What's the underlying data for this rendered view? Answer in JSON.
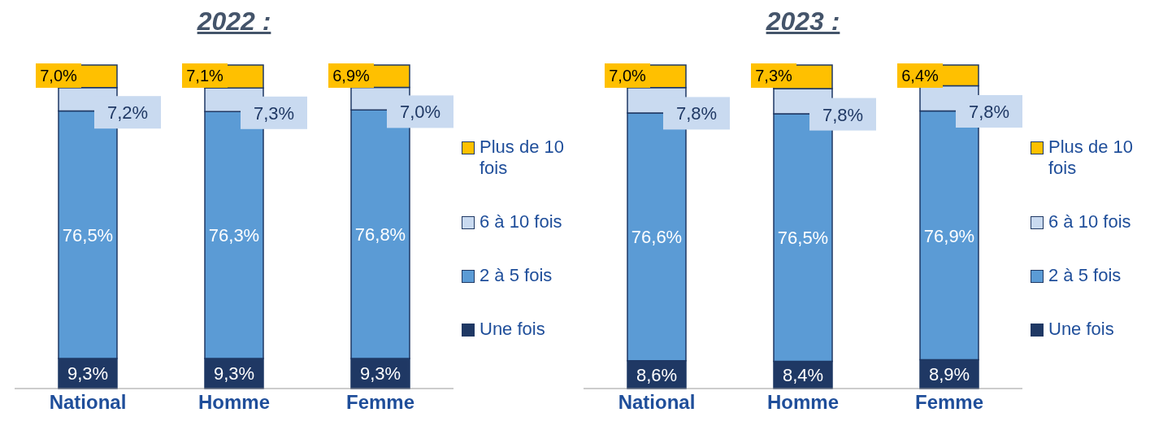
{
  "chart_data": [
    {
      "type": "bar",
      "title": "2022 :",
      "categories": [
        "National",
        "Homme",
        "Femme"
      ],
      "stacked": true,
      "legend": "right",
      "series": [
        {
          "name": "Une fois",
          "color": "#1f3864",
          "values": [
            9.3,
            9.3,
            9.3
          ],
          "value_labels": [
            "9,3%",
            "9,3%",
            "9,3%"
          ]
        },
        {
          "name": "2 à 5 fois",
          "color": "#5b9bd5",
          "values": [
            76.5,
            76.3,
            76.8
          ],
          "value_labels": [
            "76,5%",
            "76,3%",
            "76,8%"
          ]
        },
        {
          "name": "6 à 10 fois",
          "color": "#c9daf0",
          "values": [
            7.2,
            7.3,
            7.0
          ],
          "value_labels": [
            "7,2%",
            "7,3%",
            "7,0%"
          ]
        },
        {
          "name": "Plus de 10 fois",
          "color": "#ffc000",
          "values": [
            7.0,
            7.1,
            6.9
          ],
          "value_labels": [
            "7,0%",
            "7,1%",
            "6,9%"
          ]
        }
      ]
    },
    {
      "type": "bar",
      "title": "2023 :",
      "categories": [
        "National",
        "Homme",
        "Femme"
      ],
      "stacked": true,
      "legend": "right",
      "series": [
        {
          "name": "Une fois",
          "color": "#1f3864",
          "values": [
            8.6,
            8.4,
            8.9
          ],
          "value_labels": [
            "8,6%",
            "8,4%",
            "8,9%"
          ]
        },
        {
          "name": "2 à 5 fois",
          "color": "#5b9bd5",
          "values": [
            76.6,
            76.5,
            76.9
          ],
          "value_labels": [
            "76,6%",
            "76,5%",
            "76,9%"
          ]
        },
        {
          "name": "6 à 10 fois",
          "color": "#c9daf0",
          "values": [
            7.8,
            7.8,
            7.8
          ],
          "value_labels": [
            "7,8%",
            "7,8%",
            "7,8%"
          ]
        },
        {
          "name": "Plus de 10 fois",
          "color": "#ffc000",
          "values": [
            7.0,
            7.3,
            6.4
          ],
          "value_labels": [
            "7,0%",
            "7,3%",
            "6,4%"
          ]
        }
      ]
    }
  ]
}
